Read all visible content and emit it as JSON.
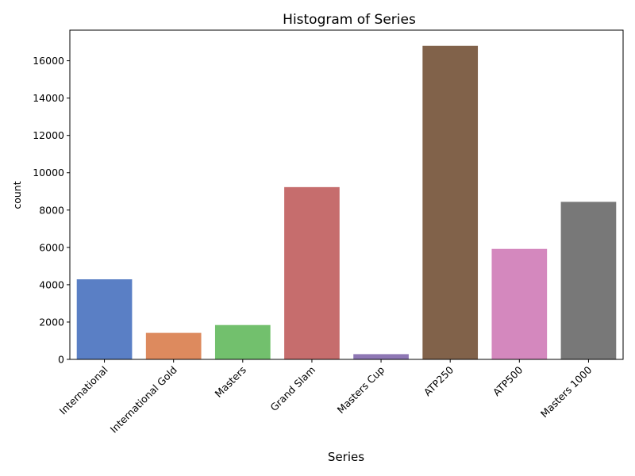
{
  "chart_data": {
    "type": "bar",
    "title": "Histogram of Series",
    "xlabel": "Series",
    "ylabel": "count",
    "categories": [
      "International",
      "International Gold",
      "Masters",
      "Grand Slam",
      "Masters Cup",
      "ATP250",
      "ATP500",
      "Masters 1000"
    ],
    "values": [
      4290,
      1420,
      1840,
      9230,
      280,
      16800,
      5920,
      8440
    ],
    "colors": [
      "#5a7fc5",
      "#dd8a5e",
      "#72c06d",
      "#c66d6d",
      "#8e77b4",
      "#81624a",
      "#d488be",
      "#787878"
    ],
    "ylim": [
      0,
      17640
    ],
    "yticks": [
      "0",
      "2000",
      "4000",
      "6000",
      "8000",
      "10000",
      "12000",
      "14000",
      "16000"
    ],
    "grid": false,
    "legend": "none"
  }
}
